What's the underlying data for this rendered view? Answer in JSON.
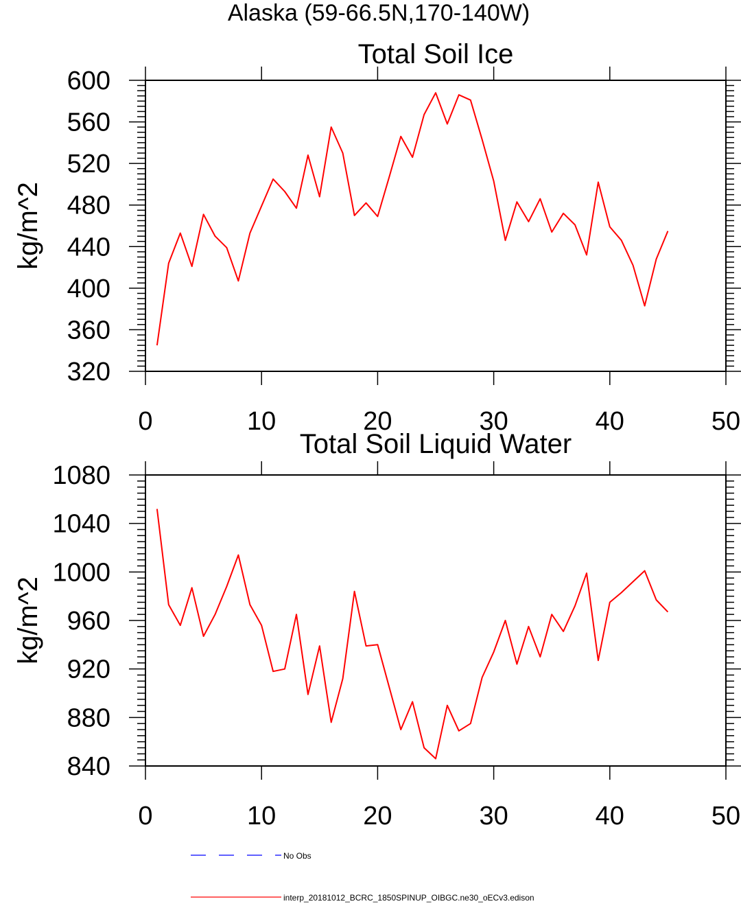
{
  "figure": {
    "title": "Alaska (59-66.5N,170-140W)"
  },
  "colors": {
    "model_line": "#ff0000",
    "obs_line": "#0000ff",
    "axis": "#000000"
  },
  "legend": {
    "entries": [
      {
        "label": "No Obs",
        "color": "#0000ff",
        "style": "dashed"
      },
      {
        "label": "interp_20181012_BCRC_1850SPINUP_OIBGC.ne30_oECv3.edison",
        "color": "#ff0000",
        "style": "solid"
      }
    ]
  },
  "chart_data": [
    {
      "type": "line",
      "title": "Total Soil Ice",
      "xlabel": "",
      "ylabel": "kg/m^2",
      "xlim": [
        0,
        50
      ],
      "ylim": [
        320,
        600
      ],
      "xticks": [
        0,
        10,
        20,
        30,
        40,
        50
      ],
      "yticks": [
        320,
        360,
        400,
        440,
        480,
        520,
        560,
        600
      ],
      "x_minor_step": 10,
      "y_minor_step": 8,
      "grid": false,
      "x": [
        1,
        2,
        3,
        4,
        5,
        6,
        7,
        8,
        9,
        10,
        11,
        12,
        13,
        14,
        15,
        16,
        17,
        18,
        19,
        20,
        21,
        22,
        23,
        24,
        25,
        26,
        27,
        28,
        29,
        30,
        31,
        32,
        33,
        34,
        35,
        36,
        37,
        38,
        39,
        40,
        41,
        42,
        43,
        44,
        45
      ],
      "series": [
        {
          "name": "interp_20181012_BCRC_1850SPINUP_OIBGC.ne30_oECv3.edison",
          "color": "#ff0000",
          "values": [
            345,
            424,
            453,
            421,
            471,
            450,
            439,
            407,
            453,
            479,
            505,
            493,
            477,
            528,
            488,
            555,
            530,
            470,
            482,
            469,
            507,
            546,
            526,
            567,
            588,
            558,
            586,
            581,
            543,
            503,
            446,
            483,
            464,
            486,
            454,
            472,
            461,
            432,
            502,
            459,
            446,
            422,
            383,
            428,
            455
          ]
        }
      ]
    },
    {
      "type": "line",
      "title": "Total Soil Liquid Water",
      "xlabel": "",
      "ylabel": "kg/m^2",
      "xlim": [
        0,
        50
      ],
      "ylim": [
        840,
        1080
      ],
      "xticks": [
        0,
        10,
        20,
        30,
        40,
        50
      ],
      "yticks": [
        840,
        880,
        920,
        960,
        1000,
        1040,
        1080
      ],
      "x_minor_step": 10,
      "y_minor_step": 8,
      "grid": false,
      "x": [
        1,
        2,
        3,
        4,
        5,
        6,
        7,
        8,
        9,
        10,
        11,
        12,
        13,
        14,
        15,
        16,
        17,
        18,
        19,
        20,
        21,
        22,
        23,
        24,
        25,
        26,
        27,
        28,
        29,
        30,
        31,
        32,
        33,
        34,
        35,
        36,
        37,
        38,
        39,
        40,
        41,
        42,
        43,
        44,
        45
      ],
      "series": [
        {
          "name": "interp_20181012_BCRC_1850SPINUP_OIBGC.ne30_oECv3.edison",
          "color": "#ff0000",
          "values": [
            1052,
            973,
            956,
            987,
            947,
            965,
            988,
            1014,
            973,
            956,
            918,
            920,
            965,
            899,
            939,
            876,
            912,
            984,
            939,
            940,
            905,
            870,
            893,
            855,
            846,
            890,
            869,
            875,
            913,
            934,
            960,
            924,
            955,
            930,
            965,
            951,
            972,
            999,
            927,
            975,
            983,
            992,
            1001,
            977,
            967
          ]
        }
      ]
    }
  ]
}
